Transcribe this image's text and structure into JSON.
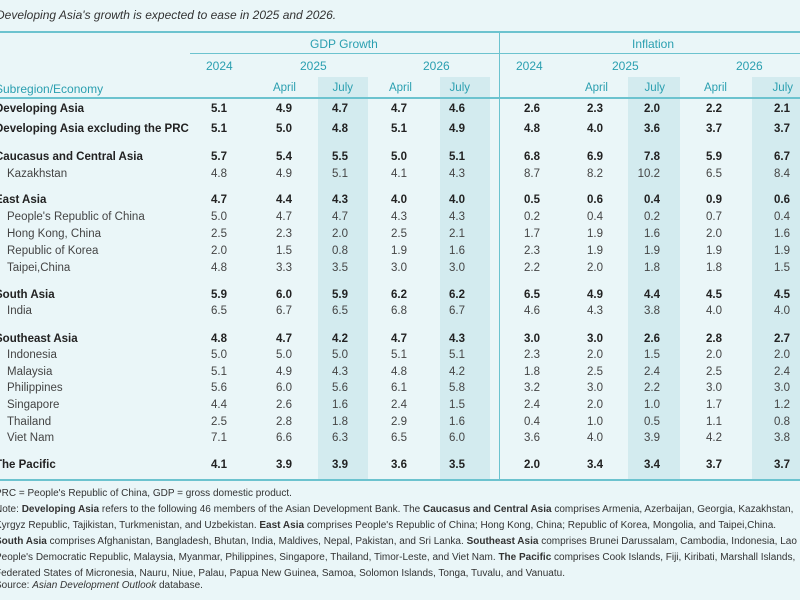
{
  "title": "Developing Asia's growth is expected to ease in 2025 and 2026.",
  "colors": {
    "accent": "#2a9fb0",
    "background": "#eaf6f8",
    "highlight": "#d3ebef"
  },
  "header": {
    "gdp": "GDP Growth",
    "inflation": "Inflation",
    "row_label": "Subregion/Economy",
    "years": [
      "2024",
      "2025",
      "2026",
      "2024",
      "2025",
      "2026"
    ],
    "subheads": [
      "April",
      "July",
      "April",
      "July",
      "April",
      "July",
      "April",
      "July"
    ]
  },
  "rows": [
    {
      "name": "Developing Asia",
      "bold": true,
      "values": [
        "5.1",
        "4.9",
        "4.7",
        "4.7",
        "4.6",
        "2.6",
        "2.3",
        "2.0",
        "2.2",
        "2.1"
      ]
    },
    {
      "name": "Developing Asia excluding the PRC",
      "bold": true,
      "values": [
        "5.1",
        "5.0",
        "4.8",
        "5.1",
        "4.9",
        "4.8",
        "4.0",
        "3.6",
        "3.7",
        "3.7"
      ]
    },
    {
      "name": "Caucasus and Central Asia",
      "bold": true,
      "values": [
        "5.7",
        "5.4",
        "5.5",
        "5.0",
        "5.1",
        "6.8",
        "6.9",
        "7.8",
        "5.9",
        "6.7"
      ]
    },
    {
      "name": "Kazakhstan",
      "bold": false,
      "values": [
        "4.8",
        "4.9",
        "5.1",
        "4.1",
        "4.3",
        "8.7",
        "8.2",
        "10.2",
        "6.5",
        "8.4"
      ]
    },
    {
      "name": "East Asia",
      "bold": true,
      "values": [
        "4.7",
        "4.4",
        "4.3",
        "4.0",
        "4.0",
        "0.5",
        "0.6",
        "0.4",
        "0.9",
        "0.6"
      ]
    },
    {
      "name": "People's Republic of China",
      "bold": false,
      "values": [
        "5.0",
        "4.7",
        "4.7",
        "4.3",
        "4.3",
        "0.2",
        "0.4",
        "0.2",
        "0.7",
        "0.4"
      ]
    },
    {
      "name": "Hong Kong, China",
      "bold": false,
      "values": [
        "2.5",
        "2.3",
        "2.0",
        "2.5",
        "2.1",
        "1.7",
        "1.9",
        "1.6",
        "2.0",
        "1.6"
      ]
    },
    {
      "name": "Republic of Korea",
      "bold": false,
      "values": [
        "2.0",
        "1.5",
        "0.8",
        "1.9",
        "1.6",
        "2.3",
        "1.9",
        "1.9",
        "1.9",
        "1.9"
      ]
    },
    {
      "name": "Taipei,China",
      "bold": false,
      "values": [
        "4.8",
        "3.3",
        "3.5",
        "3.0",
        "3.0",
        "2.2",
        "2.0",
        "1.8",
        "1.8",
        "1.5"
      ]
    },
    {
      "name": "South Asia",
      "bold": true,
      "values": [
        "5.9",
        "6.0",
        "5.9",
        "6.2",
        "6.2",
        "6.5",
        "4.9",
        "4.4",
        "4.5",
        "4.5"
      ]
    },
    {
      "name": "India",
      "bold": false,
      "values": [
        "6.5",
        "6.7",
        "6.5",
        "6.8",
        "6.7",
        "4.6",
        "4.3",
        "3.8",
        "4.0",
        "4.0"
      ]
    },
    {
      "name": "Southeast Asia",
      "bold": true,
      "values": [
        "4.8",
        "4.7",
        "4.2",
        "4.7",
        "4.3",
        "3.0",
        "3.0",
        "2.6",
        "2.8",
        "2.7"
      ]
    },
    {
      "name": "Indonesia",
      "bold": false,
      "values": [
        "5.0",
        "5.0",
        "5.0",
        "5.1",
        "5.1",
        "2.3",
        "2.0",
        "1.5",
        "2.0",
        "2.0"
      ]
    },
    {
      "name": "Malaysia",
      "bold": false,
      "values": [
        "5.1",
        "4.9",
        "4.3",
        "4.8",
        "4.2",
        "1.8",
        "2.5",
        "2.4",
        "2.5",
        "2.4"
      ]
    },
    {
      "name": "Philippines",
      "bold": false,
      "values": [
        "5.6",
        "6.0",
        "5.6",
        "6.1",
        "5.8",
        "3.2",
        "3.0",
        "2.2",
        "3.0",
        "3.0"
      ]
    },
    {
      "name": "Singapore",
      "bold": false,
      "values": [
        "4.4",
        "2.6",
        "1.6",
        "2.4",
        "1.5",
        "2.4",
        "2.0",
        "1.0",
        "1.7",
        "1.2"
      ]
    },
    {
      "name": "Thailand",
      "bold": false,
      "values": [
        "2.5",
        "2.8",
        "1.8",
        "2.9",
        "1.6",
        "0.4",
        "1.0",
        "0.5",
        "1.1",
        "0.8"
      ]
    },
    {
      "name": "Viet Nam",
      "bold": false,
      "values": [
        "7.1",
        "6.6",
        "6.3",
        "6.5",
        "6.0",
        "3.6",
        "4.0",
        "3.9",
        "4.2",
        "3.8"
      ]
    },
    {
      "name": "The Pacific",
      "bold": true,
      "values": [
        "4.1",
        "3.9",
        "3.9",
        "3.6",
        "3.5",
        "2.0",
        "3.4",
        "3.4",
        "3.7",
        "3.7"
      ]
    }
  ],
  "notes": {
    "abbrev": "PRC = People's Republic of China, GDP = gross domestic product.",
    "note_html": "Note: <b>Developing Asia</b> refers to the following 46 members of the Asian Development Bank. The <b>Caucasus and Central Asia</b> comprises Armenia, Azerbaijan, Georgia, Kazakhstan, Kyrgyz Republic, Tajikistan, Turkmenistan, and Uzbekistan. <b>East Asia</b> comprises People's Republic of China; Hong Kong, China; Republic of Korea, Mongolia, and Taipei,China. <b>South Asia</b> comprises Afghanistan, Bangladesh, Bhutan, India, Maldives, Nepal, Pakistan, and Sri Lanka. <b>Southeast Asia</b> comprises Brunei Darussalam, Cambodia, Indonesia, Lao People's Democratic Republic, Malaysia, Myanmar, Philippines, Singapore, Thailand, Timor-Leste, and Viet Nam. <b>The Pacific</b> comprises Cook Islands, Fiji, Kiribati, Marshall Islands, Federated States of Micronesia, Nauru, Niue, Palau, Papua New Guinea, Samoa, Solomon Islands, Tonga, Tuvalu, and Vanuatu.",
    "source_prefix": "Source: ",
    "source_italic": "Asian Development Outlook",
    "source_suffix": " database."
  }
}
